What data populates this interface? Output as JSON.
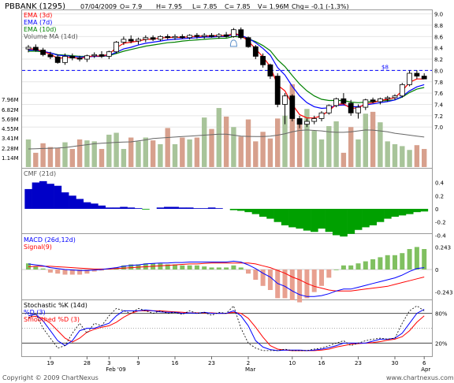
{
  "header": {
    "symbol": "PBBANK (1295)",
    "date": "07/04/2009",
    "open": "O= 7.9",
    "high": "H= 7.95",
    "low": "L= 7.85",
    "close": "C= 7.85",
    "volume": "V= 1.96M",
    "change": "Chg= -0.1 (-1.3%)"
  },
  "footer": {
    "copyright": "Copyright © 2009 ChartNexus",
    "brand": "www.chartnexus.com"
  },
  "colors": {
    "ema3": "#ff0000",
    "ema7": "#0000ff",
    "ema10": "#008000",
    "volume_ma": "#666666",
    "volume_up": "#a8c49a",
    "volume_down": "#d7a08d",
    "cmf_positive": "#0000c8",
    "cmf_negative": "#00a000",
    "macd_line": "#0000ff",
    "signal_line": "#ff0000",
    "macd_hist_up": "#80c060",
    "macd_hist_down": "#e8a090",
    "stoch_k": "#000000",
    "stoch_d": "#0000ff",
    "smoothed_d": "#ff0000",
    "grid_line": "#0000ff"
  },
  "chart_data": [
    {
      "type": "candlestick",
      "title": "PBBANK (1295)",
      "legend": [
        "EMA (3d)",
        "EMA (7d)",
        "EMA (10d)",
        "Volume MA (14d)"
      ],
      "y_ticks": [
        "9.0",
        "8.8",
        "8.6",
        "8.4",
        "8.2",
        "8.0",
        "7.8",
        "7.6",
        "7.4",
        "7.2",
        "7.0"
      ],
      "volume_ticks": [
        "7.96M",
        "6.82M",
        "5.69M",
        "4.55M",
        "3.41M",
        "2.28M",
        "1.14M"
      ],
      "ylim": [
        6.85,
        9.05
      ],
      "volume_max_m": 9.1,
      "reference_line": {
        "value": 8.0,
        "label": "$8"
      },
      "annotation": "alert-bell",
      "x_tick_labels": [
        "19",
        "28",
        "3",
        "9",
        "16",
        "23",
        "2",
        "10",
        "16",
        "23",
        "30",
        "6"
      ],
      "x_tick_index": [
        3,
        8,
        11,
        15,
        20,
        25,
        30,
        36,
        40,
        45,
        50,
        54
      ],
      "month_labels": [
        "Feb '09",
        "Mar",
        "Apr"
      ],
      "month_label_index": [
        11,
        30,
        54
      ],
      "ohlc": [
        [
          8.38,
          8.45,
          8.32,
          8.41
        ],
        [
          8.41,
          8.46,
          8.33,
          8.36
        ],
        [
          8.36,
          8.4,
          8.25,
          8.28
        ],
        [
          8.28,
          8.33,
          8.2,
          8.24
        ],
        [
          8.24,
          8.28,
          8.12,
          8.14
        ],
        [
          8.14,
          8.3,
          8.1,
          8.25
        ],
        [
          8.25,
          8.3,
          8.18,
          8.22
        ],
        [
          8.22,
          8.26,
          8.16,
          8.2
        ],
        [
          8.2,
          8.28,
          8.15,
          8.26
        ],
        [
          8.26,
          8.32,
          8.22,
          8.28
        ],
        [
          8.28,
          8.34,
          8.22,
          8.25
        ],
        [
          8.25,
          8.35,
          8.2,
          8.33
        ],
        [
          8.33,
          8.52,
          8.3,
          8.5
        ],
        [
          8.5,
          8.6,
          8.45,
          8.55
        ],
        [
          8.55,
          8.62,
          8.48,
          8.52
        ],
        [
          8.52,
          8.58,
          8.46,
          8.55
        ],
        [
          8.55,
          8.62,
          8.5,
          8.58
        ],
        [
          8.58,
          8.62,
          8.52,
          8.55
        ],
        [
          8.55,
          8.62,
          8.52,
          8.6
        ],
        [
          8.6,
          8.64,
          8.55,
          8.58
        ],
        [
          8.58,
          8.64,
          8.54,
          8.6
        ],
        [
          8.6,
          8.64,
          8.56,
          8.58
        ],
        [
          8.58,
          8.64,
          8.55,
          8.62
        ],
        [
          8.62,
          8.66,
          8.56,
          8.6
        ],
        [
          8.6,
          8.66,
          8.56,
          8.62
        ],
        [
          8.62,
          8.66,
          8.58,
          8.6
        ],
        [
          8.6,
          8.66,
          8.56,
          8.63
        ],
        [
          8.63,
          8.68,
          8.58,
          8.6
        ],
        [
          8.6,
          8.75,
          8.58,
          8.72
        ],
        [
          8.72,
          8.76,
          8.55,
          8.58
        ],
        [
          8.58,
          8.6,
          8.4,
          8.42
        ],
        [
          8.42,
          8.45,
          8.2,
          8.25
        ],
        [
          8.25,
          8.3,
          8.05,
          8.1
        ],
        [
          8.1,
          8.12,
          7.85,
          7.9
        ],
        [
          7.9,
          7.95,
          7.35,
          7.4
        ],
        [
          7.4,
          7.6,
          7.05,
          7.55
        ],
        [
          7.55,
          7.58,
          7.1,
          7.15
        ],
        [
          7.15,
          7.2,
          6.98,
          7.05
        ],
        [
          7.05,
          7.15,
          7.0,
          7.1
        ],
        [
          7.1,
          7.2,
          7.05,
          7.15
        ],
        [
          7.15,
          7.28,
          7.1,
          7.25
        ],
        [
          7.25,
          7.4,
          7.22,
          7.38
        ],
        [
          7.38,
          7.52,
          7.35,
          7.5
        ],
        [
          7.5,
          7.6,
          7.4,
          7.42
        ],
        [
          7.42,
          7.48,
          7.2,
          7.25
        ],
        [
          7.25,
          7.4,
          7.15,
          7.35
        ],
        [
          7.35,
          7.5,
          7.3,
          7.48
        ],
        [
          7.48,
          7.52,
          7.42,
          7.45
        ],
        [
          7.45,
          7.52,
          7.4,
          7.5
        ],
        [
          7.5,
          7.55,
          7.45,
          7.52
        ],
        [
          7.52,
          7.58,
          7.48,
          7.55
        ],
        [
          7.55,
          7.78,
          7.52,
          7.75
        ],
        [
          7.75,
          8.0,
          7.72,
          7.95
        ],
        [
          7.95,
          8.0,
          7.85,
          7.9
        ],
        [
          7.9,
          7.95,
          7.85,
          7.85
        ]
      ],
      "ema3": [
        8.38,
        8.38,
        8.33,
        8.29,
        8.21,
        8.23,
        8.23,
        8.21,
        8.24,
        8.26,
        8.25,
        8.29,
        8.4,
        8.48,
        8.5,
        8.52,
        8.55,
        8.55,
        8.58,
        8.58,
        8.59,
        8.58,
        8.6,
        8.6,
        8.61,
        8.61,
        8.62,
        8.61,
        8.66,
        8.62,
        8.52,
        8.38,
        8.24,
        8.07,
        7.74,
        7.64,
        7.4,
        7.22,
        7.16,
        7.16,
        7.2,
        7.29,
        7.4,
        7.41,
        7.33,
        7.34,
        7.41,
        7.43,
        7.47,
        7.49,
        7.52,
        7.64,
        7.79,
        7.85,
        7.85
      ],
      "ema7": [
        8.36,
        8.36,
        8.34,
        8.31,
        8.27,
        8.26,
        8.25,
        8.24,
        8.24,
        8.25,
        8.25,
        8.27,
        8.32,
        8.38,
        8.41,
        8.45,
        8.48,
        8.5,
        8.52,
        8.54,
        8.55,
        8.56,
        8.57,
        8.58,
        8.59,
        8.59,
        8.6,
        8.6,
        8.63,
        8.62,
        8.57,
        8.49,
        8.39,
        8.27,
        8.05,
        7.92,
        7.72,
        7.55,
        7.43,
        7.36,
        7.33,
        7.34,
        7.38,
        7.39,
        7.36,
        7.36,
        7.39,
        7.41,
        7.43,
        7.45,
        7.48,
        7.54,
        7.64,
        7.71,
        7.75
      ],
      "ema10": [
        8.34,
        8.34,
        8.33,
        8.31,
        8.28,
        8.27,
        8.26,
        8.25,
        8.25,
        8.25,
        8.25,
        8.26,
        8.3,
        8.34,
        8.37,
        8.4,
        8.43,
        8.45,
        8.47,
        8.49,
        8.5,
        8.52,
        8.53,
        8.54,
        8.55,
        8.56,
        8.57,
        8.57,
        8.6,
        8.59,
        8.56,
        8.51,
        8.44,
        8.35,
        8.19,
        8.07,
        7.91,
        7.76,
        7.64,
        7.55,
        7.49,
        7.47,
        7.47,
        7.47,
        7.44,
        7.43,
        7.44,
        7.45,
        7.46,
        7.47,
        7.48,
        7.53,
        7.61,
        7.67,
        7.7
      ],
      "volume_m": [
        2.9,
        1.5,
        2.5,
        2.1,
        2.0,
        2.6,
        1.9,
        2.9,
        2.8,
        2.7,
        1.9,
        3.4,
        3.6,
        1.9,
        3.1,
        2.7,
        3.1,
        2.8,
        2.4,
        4.1,
        2.4,
        3.1,
        2.9,
        3.1,
        5.2,
        4.0,
        6.2,
        5.3,
        4.2,
        3.2,
        5.0,
        2.7,
        3.7,
        3.0,
        5.1,
        5.4,
        8.7,
        4.9,
        6.1,
        3.8,
        2.9,
        4.3,
        4.8,
        1.5,
        4.2,
        2.9,
        5.6,
        5.8,
        4.7,
        2.7,
        2.4,
        2.2,
        1.8,
        2.3,
        1.9
      ],
      "volume_ma_m": [
        1.9,
        1.92,
        1.95,
        1.98,
        2.0,
        2.05,
        2.15,
        2.25,
        2.35,
        2.45,
        2.5,
        2.55,
        2.6,
        2.62,
        2.65,
        2.75,
        2.85,
        3.0,
        3.05,
        3.1,
        3.15,
        3.2,
        3.25,
        3.3,
        3.35,
        3.4,
        3.45,
        3.45,
        3.35,
        3.25,
        3.22,
        3.2,
        3.2,
        3.25,
        3.35,
        3.5,
        3.7,
        3.85,
        3.9,
        3.85,
        3.8,
        3.7,
        3.65,
        3.65,
        3.7,
        3.8,
        3.9,
        3.88,
        3.8,
        3.7,
        3.55,
        3.45,
        3.35,
        3.25,
        3.15
      ]
    },
    {
      "type": "area",
      "title": "CMF (21d)",
      "y_ticks": [
        "0.4",
        "0.2",
        "0",
        "-0.2",
        "-0.4"
      ],
      "ylim": [
        -0.55,
        0.55
      ],
      "values": [
        0.3,
        0.4,
        0.42,
        0.38,
        0.35,
        0.25,
        0.2,
        0.15,
        0.1,
        0.08,
        0.05,
        0.02,
        0.02,
        0.03,
        0.02,
        0.01,
        -0.01,
        0.0,
        0.02,
        0.03,
        0.03,
        0.02,
        0.02,
        0.01,
        0.01,
        0.02,
        0.01,
        0.0,
        -0.02,
        -0.03,
        -0.05,
        -0.08,
        -0.12,
        -0.15,
        -0.2,
        -0.25,
        -0.28,
        -0.3,
        -0.33,
        -0.35,
        -0.3,
        -0.35,
        -0.4,
        -0.42,
        -0.38,
        -0.32,
        -0.28,
        -0.25,
        -0.2,
        -0.15,
        -0.12,
        -0.1,
        -0.08,
        -0.05,
        -0.04
      ]
    },
    {
      "type": "line",
      "title": "MACD (26d,12d)",
      "legend": [
        "MACD (26d,12d)",
        "Signal(9)"
      ],
      "y_ticks": [
        "0.243",
        "0",
        "-0.243"
      ],
      "ylim": [
        -0.33,
        0.33
      ],
      "macd": [
        0.06,
        0.05,
        0.04,
        0.02,
        0.01,
        0.0,
        -0.005,
        -0.01,
        -0.01,
        -0.005,
        0.0,
        0.01,
        0.02,
        0.035,
        0.045,
        0.05,
        0.06,
        0.065,
        0.07,
        0.07,
        0.075,
        0.075,
        0.08,
        0.08,
        0.08,
        0.08,
        0.08,
        0.08,
        0.09,
        0.08,
        0.05,
        0.01,
        -0.04,
        -0.08,
        -0.15,
        -0.18,
        -0.23,
        -0.27,
        -0.29,
        -0.29,
        -0.28,
        -0.26,
        -0.23,
        -0.21,
        -0.21,
        -0.19,
        -0.17,
        -0.15,
        -0.13,
        -0.11,
        -0.09,
        -0.06,
        -0.02,
        0.01,
        0.02
      ],
      "signal": [
        0.03,
        0.035,
        0.035,
        0.035,
        0.03,
        0.025,
        0.02,
        0.015,
        0.01,
        0.005,
        0.005,
        0.005,
        0.01,
        0.015,
        0.02,
        0.025,
        0.03,
        0.035,
        0.04,
        0.045,
        0.05,
        0.055,
        0.06,
        0.06,
        0.065,
        0.07,
        0.07,
        0.07,
        0.07,
        0.07,
        0.07,
        0.06,
        0.04,
        0.02,
        -0.01,
        -0.04,
        -0.08,
        -0.11,
        -0.15,
        -0.18,
        -0.2,
        -0.22,
        -0.23,
        -0.23,
        -0.23,
        -0.22,
        -0.21,
        -0.2,
        -0.19,
        -0.18,
        -0.16,
        -0.14,
        -0.12,
        -0.1,
        -0.08
      ]
    },
    {
      "type": "line",
      "title": "Stochastic %K (14d)",
      "legend": [
        "Stochastic %K (14d)",
        "%D (3)",
        "Smoothed %D (3)"
      ],
      "y_ticks": [
        "80%",
        "20%"
      ],
      "ylim": [
        0,
        100
      ],
      "k": [
        70,
        80,
        50,
        30,
        10,
        15,
        40,
        60,
        40,
        60,
        55,
        75,
        90,
        85,
        80,
        90,
        85,
        80,
        85,
        80,
        82,
        78,
        85,
        80,
        82,
        76,
        82,
        80,
        95,
        50,
        20,
        10,
        5,
        5,
        5,
        8,
        5,
        5,
        5,
        8,
        10,
        15,
        20,
        25,
        15,
        20,
        25,
        28,
        30,
        28,
        30,
        60,
        85,
        95,
        85
      ],
      "d": [
        75,
        78,
        65,
        45,
        25,
        15,
        25,
        45,
        50,
        50,
        55,
        60,
        75,
        85,
        85,
        85,
        87,
        85,
        83,
        82,
        82,
        80,
        81,
        80,
        82,
        80,
        80,
        80,
        85,
        75,
        55,
        25,
        12,
        7,
        5,
        6,
        6,
        6,
        5,
        6,
        8,
        11,
        15,
        20,
        20,
        20,
        20,
        24,
        28,
        28,
        30,
        40,
        60,
        80,
        88
      ],
      "smoothed_d": [
        72,
        74,
        70,
        60,
        45,
        30,
        22,
        30,
        42,
        48,
        52,
        55,
        62,
        72,
        80,
        85,
        85,
        85,
        85,
        84,
        83,
        82,
        81,
        81,
        81,
        81,
        80,
        80,
        82,
        80,
        70,
        52,
        32,
        15,
        8,
        6,
        5,
        5,
        5,
        5,
        6,
        8,
        12,
        15,
        18,
        19,
        20,
        21,
        23,
        26,
        28,
        33,
        45,
        62,
        75
      ]
    }
  ]
}
